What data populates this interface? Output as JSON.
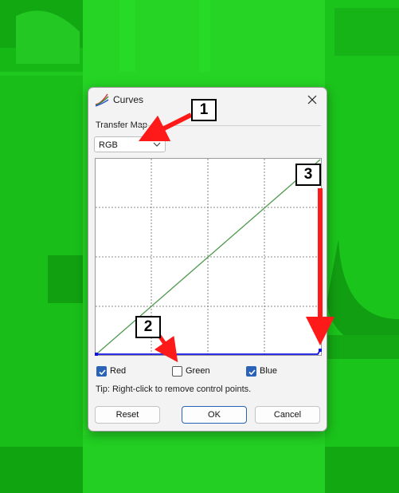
{
  "dialog": {
    "title": "Curves",
    "close_icon": "close-icon",
    "transfer_map_label": "Transfer Map",
    "transfer_map_value": "RGB",
    "channels": [
      {
        "label": "Red",
        "checked": true
      },
      {
        "label": "Green",
        "checked": false
      },
      {
        "label": "Blue",
        "checked": true
      }
    ],
    "tip": "Tip: Right-click to remove control points.",
    "buttons": {
      "reset": "Reset",
      "ok": "OK",
      "cancel": "Cancel"
    }
  },
  "colors": {
    "background_green": "#1ec81e",
    "accent_blue": "#2a62b8",
    "curve_green": "#4f9a4f",
    "curve_blue": "#1010e0",
    "arrow_red": "#ff1a1a"
  },
  "annotations": [
    {
      "label": "1"
    },
    {
      "label": "2"
    },
    {
      "label": "3"
    }
  ]
}
